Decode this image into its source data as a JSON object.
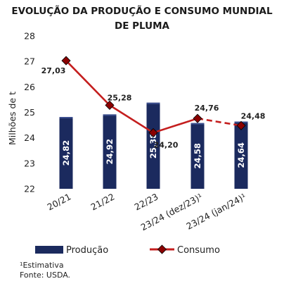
{
  "chart_data": {
    "type": "bar",
    "title_line1": "EVOLUÇÃO DA PRODUÇÃO E CONSUMO MUNDIAL",
    "title_line2": "DE PLUMA",
    "ylabel": "Milhões de t",
    "ylim": [
      22,
      28
    ],
    "yticks": [
      22,
      23,
      24,
      25,
      26,
      27,
      28
    ],
    "categories": [
      "20/21",
      "21/22",
      "22/23",
      "23/24 (dez/23)¹",
      "23/24 (jan/24)¹"
    ],
    "series": [
      {
        "name": "Produção",
        "kind": "bar",
        "color": "#1b2a5e",
        "values": [
          24.82,
          24.92,
          25.38,
          24.58,
          24.64
        ],
        "labels": [
          "24,82",
          "24,92",
          "25,38",
          "24,58",
          "24,64"
        ]
      },
      {
        "name": "Consumo",
        "kind": "line",
        "color": "#c41e1e",
        "marker_color": "#8b0000",
        "values": [
          27.03,
          25.28,
          24.2,
          24.76,
          24.48
        ],
        "labels": [
          "27,03",
          "25,28",
          "24,20",
          "24,76",
          "24,48"
        ],
        "dashed_last_segment": true
      }
    ],
    "grid": false,
    "legend": "bottom"
  },
  "footnote": {
    "marker": "1",
    "estimate": "Estimativa",
    "source": "Fonte: USDA."
  }
}
